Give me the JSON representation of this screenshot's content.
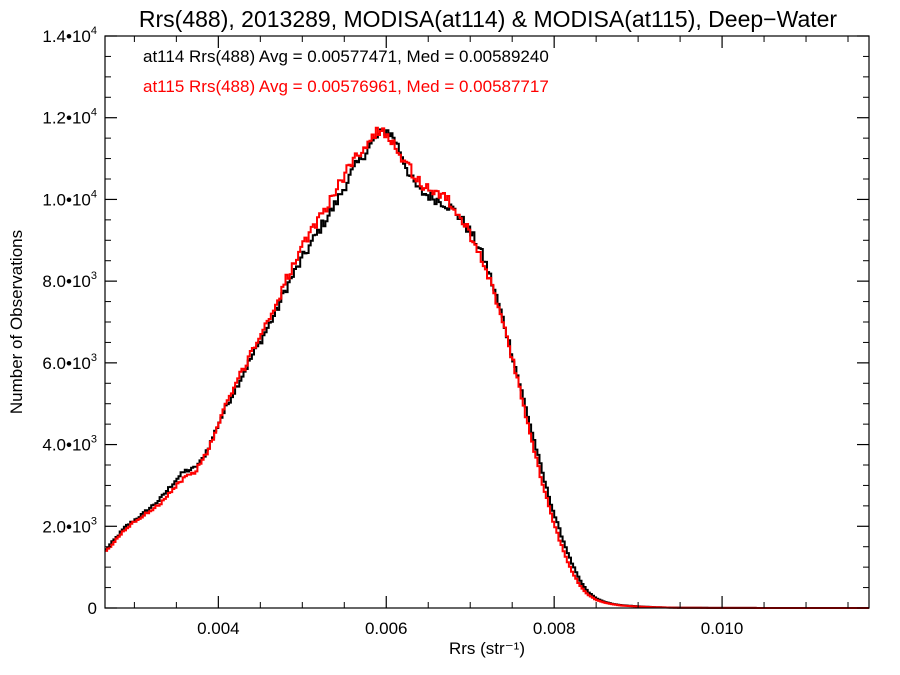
{
  "chart_data": {
    "type": "line",
    "title": "Rrs(488), 2013289, MODISA(at114) & MODISA(at115), Deep−Water",
    "xlabel": "Rrs (str⁻¹)",
    "ylabel": "Number of Observations",
    "xlim": [
      0.00265,
      0.01175
    ],
    "ylim": [
      0,
      14000
    ],
    "x_ticks": [
      {
        "value": 0.004,
        "label": "0.004"
      },
      {
        "value": 0.006,
        "label": "0.006"
      },
      {
        "value": 0.008,
        "label": "0.008"
      },
      {
        "value": 0.01,
        "label": "0.010"
      }
    ],
    "y_ticks": [
      {
        "value": 0,
        "label": "0",
        "exp": ""
      },
      {
        "value": 2000,
        "label": "2.0•10",
        "exp": "3"
      },
      {
        "value": 4000,
        "label": "4.0•10",
        "exp": "3"
      },
      {
        "value": 6000,
        "label": "6.0•10",
        "exp": "3"
      },
      {
        "value": 8000,
        "label": "8.0•10",
        "exp": "3"
      },
      {
        "value": 10000,
        "label": "1.0•10",
        "exp": "4"
      },
      {
        "value": 12000,
        "label": "1.2•10",
        "exp": "4"
      },
      {
        "value": 14000,
        "label": "1.4•10",
        "exp": "4"
      }
    ],
    "annotations": [
      {
        "text": "at114 Rrs(488) Avg = 0.00577471, Med = 0.00589240",
        "color": "#000000"
      },
      {
        "text": "at115 Rrs(488) Avg = 0.00576961, Med = 0.00587717",
        "color": "#ff0000"
      }
    ],
    "grid": false,
    "legend": "none",
    "series": [
      {
        "color": "#000000",
        "style": "step",
        "points": [
          [
            0.00265,
            1400
          ],
          [
            0.0029,
            2000
          ],
          [
            0.0031,
            2300
          ],
          [
            0.0033,
            2650
          ],
          [
            0.0035,
            3150
          ],
          [
            0.0036,
            3350
          ],
          [
            0.0037,
            3400
          ],
          [
            0.0038,
            3600
          ],
          [
            0.0039,
            4000
          ],
          [
            0.004,
            4500
          ],
          [
            0.0041,
            4950
          ],
          [
            0.0042,
            5350
          ],
          [
            0.0043,
            5750
          ],
          [
            0.0044,
            6150
          ],
          [
            0.0046,
            6900
          ],
          [
            0.0047,
            7300
          ],
          [
            0.0048,
            7800
          ],
          [
            0.005,
            8550
          ],
          [
            0.0052,
            9250
          ],
          [
            0.0054,
            9900
          ],
          [
            0.0055,
            10300
          ],
          [
            0.0056,
            10700
          ],
          [
            0.0057,
            11000
          ],
          [
            0.0058,
            11300
          ],
          [
            0.0059,
            11550
          ],
          [
            0.006,
            11700
          ],
          [
            0.0061,
            11500
          ],
          [
            0.0062,
            11000
          ],
          [
            0.0063,
            10500
          ],
          [
            0.0064,
            10200
          ],
          [
            0.0065,
            10100
          ],
          [
            0.0066,
            10000
          ],
          [
            0.0067,
            9900
          ],
          [
            0.0068,
            9750
          ],
          [
            0.0069,
            9500
          ],
          [
            0.007,
            9200
          ],
          [
            0.0071,
            8850
          ],
          [
            0.0072,
            8350
          ],
          [
            0.0073,
            7700
          ],
          [
            0.0074,
            7000
          ],
          [
            0.0075,
            6200
          ],
          [
            0.0076,
            5400
          ],
          [
            0.0077,
            4600
          ],
          [
            0.0078,
            3800
          ],
          [
            0.0079,
            3000
          ],
          [
            0.008,
            2300
          ],
          [
            0.0081,
            1700
          ],
          [
            0.0082,
            1150
          ],
          [
            0.0083,
            700
          ],
          [
            0.0084,
            400
          ],
          [
            0.0085,
            240
          ],
          [
            0.0086,
            150
          ],
          [
            0.0087,
            100
          ],
          [
            0.0088,
            70
          ],
          [
            0.009,
            40
          ],
          [
            0.0092,
            20
          ],
          [
            0.0094,
            10
          ],
          [
            0.0097,
            5
          ],
          [
            0.01,
            2
          ],
          [
            0.0105,
            1
          ],
          [
            0.01175,
            0
          ]
        ]
      },
      {
        "color": "#ff0000",
        "style": "step",
        "points": [
          [
            0.00265,
            1350
          ],
          [
            0.0029,
            1950
          ],
          [
            0.0031,
            2250
          ],
          [
            0.0033,
            2550
          ],
          [
            0.0035,
            3000
          ],
          [
            0.0036,
            3200
          ],
          [
            0.0037,
            3300
          ],
          [
            0.0038,
            3550
          ],
          [
            0.0039,
            3950
          ],
          [
            0.004,
            4500
          ],
          [
            0.0041,
            5000
          ],
          [
            0.0042,
            5450
          ],
          [
            0.0043,
            5850
          ],
          [
            0.0044,
            6300
          ],
          [
            0.0046,
            7050
          ],
          [
            0.0047,
            7500
          ],
          [
            0.0048,
            8000
          ],
          [
            0.005,
            8800
          ],
          [
            0.0052,
            9550
          ],
          [
            0.0054,
            10200
          ],
          [
            0.0055,
            10600
          ],
          [
            0.0056,
            10950
          ],
          [
            0.0057,
            11200
          ],
          [
            0.0058,
            11450
          ],
          [
            0.0059,
            11650
          ],
          [
            0.006,
            11650
          ],
          [
            0.0061,
            11350
          ],
          [
            0.0062,
            11000
          ],
          [
            0.0063,
            10700
          ],
          [
            0.0064,
            10400
          ],
          [
            0.0065,
            10250
          ],
          [
            0.0066,
            10200
          ],
          [
            0.0067,
            10050
          ],
          [
            0.0068,
            9800
          ],
          [
            0.0069,
            9500
          ],
          [
            0.007,
            9150
          ],
          [
            0.0071,
            8750
          ],
          [
            0.0072,
            8250
          ],
          [
            0.0073,
            7600
          ],
          [
            0.0074,
            6900
          ],
          [
            0.0075,
            6100
          ],
          [
            0.0076,
            5250
          ],
          [
            0.0077,
            4400
          ],
          [
            0.0078,
            3550
          ],
          [
            0.0079,
            2750
          ],
          [
            0.008,
            2050
          ],
          [
            0.0081,
            1450
          ],
          [
            0.0082,
            950
          ],
          [
            0.0083,
            560
          ],
          [
            0.0084,
            330
          ],
          [
            0.0085,
            200
          ],
          [
            0.0086,
            130
          ],
          [
            0.0087,
            90
          ],
          [
            0.0088,
            60
          ],
          [
            0.009,
            35
          ],
          [
            0.0092,
            18
          ],
          [
            0.0094,
            9
          ],
          [
            0.0097,
            4
          ],
          [
            0.01,
            2
          ],
          [
            0.0105,
            1
          ],
          [
            0.01175,
            0
          ]
        ]
      }
    ]
  }
}
